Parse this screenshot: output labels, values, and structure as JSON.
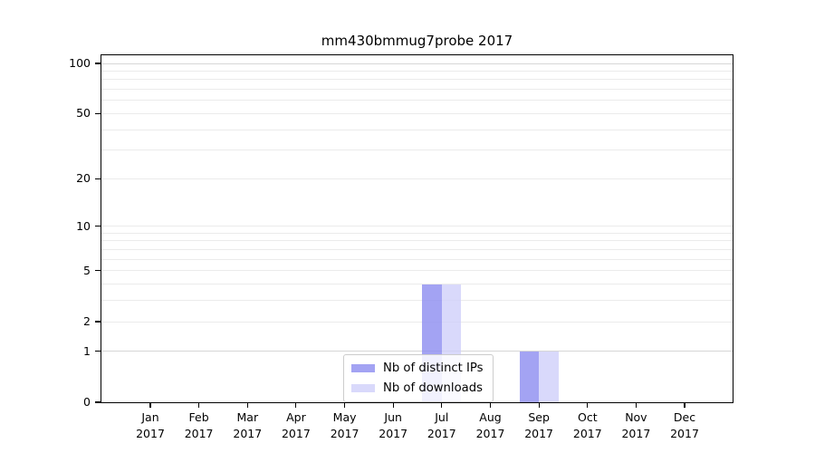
{
  "chart_data": {
    "type": "bar",
    "title": "mm430bmmug7probe 2017",
    "xlabel": "",
    "ylabel": "",
    "year_label": "2017",
    "categories": [
      "Jan",
      "Feb",
      "Mar",
      "Apr",
      "May",
      "Jun",
      "Jul",
      "Aug",
      "Sep",
      "Oct",
      "Nov",
      "Dec"
    ],
    "series": [
      {
        "name": "Nb of distinct IPs",
        "color": "rgba(147,147,241,0.85)",
        "values": [
          0,
          0,
          0,
          0,
          0,
          0,
          4,
          0,
          1,
          0,
          0,
          0
        ]
      },
      {
        "name": "Nb of downloads",
        "color": "rgba(208,208,250,0.8)",
        "values": [
          0,
          0,
          0,
          0,
          0,
          0,
          4,
          0,
          1,
          0,
          0,
          0
        ]
      }
    ],
    "y_scale": "log1p",
    "ylim": [
      0,
      111
    ],
    "y_ticks": [
      {
        "v": 0,
        "label": "0"
      },
      {
        "v": 1,
        "label": "1"
      },
      {
        "v": 2,
        "label": "2"
      },
      {
        "v": 5,
        "label": "5"
      },
      {
        "v": 10,
        "label": "10"
      },
      {
        "v": 20,
        "label": "20"
      },
      {
        "v": 50,
        "label": "50"
      },
      {
        "v": 100,
        "label": "100"
      }
    ],
    "grid_values": [
      1,
      2,
      3,
      4,
      5,
      6,
      7,
      8,
      9,
      10,
      20,
      30,
      40,
      50,
      60,
      70,
      80,
      90,
      100
    ],
    "grid_major_values": [
      1,
      100
    ],
    "legend_position": "lower center",
    "grid": true,
    "colors": {
      "distinct_ips_bar": "#a3a3f1",
      "downloads_bar": "#d9d9f9",
      "gridline": "#ebebeb",
      "gridline_major": "#d6d6d6",
      "axis": "#000000",
      "legend_border": "#cccccc"
    }
  }
}
